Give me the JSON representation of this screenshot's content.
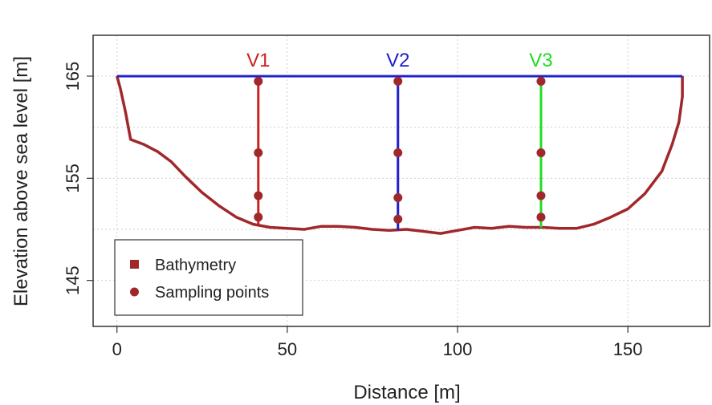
{
  "chart_data": {
    "type": "line",
    "title": "",
    "xlabel": "Distance [m]",
    "ylabel": "Elevation above sea level [m]",
    "xlim": [
      -7,
      174
    ],
    "ylim": [
      140.5,
      169
    ],
    "xticks": [
      0,
      50,
      100,
      150
    ],
    "yticks": [
      145,
      155,
      165
    ],
    "grid": true,
    "water_surface": {
      "color": "#1f1fcc",
      "x": [
        0,
        166
      ],
      "y": [
        165,
        165
      ]
    },
    "bathymetry": {
      "name": "Bathymetry",
      "color": "#a0282b",
      "points": [
        [
          0,
          165
        ],
        [
          1,
          163.8
        ],
        [
          2.5,
          161.5
        ],
        [
          4,
          158.8
        ],
        [
          8,
          158.3
        ],
        [
          12,
          157.6
        ],
        [
          16,
          156.6
        ],
        [
          20,
          155.2
        ],
        [
          25,
          153.6
        ],
        [
          30,
          152.3
        ],
        [
          35,
          151.2
        ],
        [
          40,
          150.5
        ],
        [
          45,
          150.2
        ],
        [
          50,
          150.1
        ],
        [
          55,
          150.0
        ],
        [
          60,
          150.3
        ],
        [
          65,
          150.3
        ],
        [
          70,
          150.2
        ],
        [
          75,
          150.0
        ],
        [
          80,
          149.9
        ],
        [
          85,
          150.0
        ],
        [
          90,
          149.8
        ],
        [
          95,
          149.6
        ],
        [
          100,
          149.9
        ],
        [
          105,
          150.2
        ],
        [
          110,
          150.1
        ],
        [
          115,
          150.3
        ],
        [
          120,
          150.2
        ],
        [
          125,
          150.2
        ],
        [
          130,
          150.1
        ],
        [
          135,
          150.1
        ],
        [
          140,
          150.5
        ],
        [
          145,
          151.2
        ],
        [
          150,
          152.0
        ],
        [
          155,
          153.5
        ],
        [
          160,
          155.7
        ],
        [
          163,
          158.3
        ],
        [
          165,
          160.5
        ],
        [
          166,
          163
        ],
        [
          166,
          165
        ]
      ]
    },
    "verticals": [
      {
        "label": "V1",
        "x": 41.5,
        "top": 165,
        "bottom": 150.5,
        "color": "#cc2222",
        "sampling_points": [
          164.5,
          157.5,
          153.3,
          151.2
        ]
      },
      {
        "label": "V2",
        "x": 82.5,
        "top": 165,
        "bottom": 149.9,
        "color": "#1f1fcc",
        "sampling_points": [
          164.5,
          157.5,
          153.1,
          151.0
        ]
      },
      {
        "label": "V3",
        "x": 124.5,
        "top": 165,
        "bottom": 150.2,
        "color": "#22dd22",
        "sampling_points": [
          164.5,
          157.5,
          153.3,
          151.2
        ]
      }
    ],
    "sampling_point_color": "#a0282b",
    "legend": {
      "placement": "bottom-left",
      "entries": [
        {
          "label": "Bathymetry",
          "marker": "square"
        },
        {
          "label": "Sampling points",
          "marker": "circle"
        }
      ]
    }
  }
}
